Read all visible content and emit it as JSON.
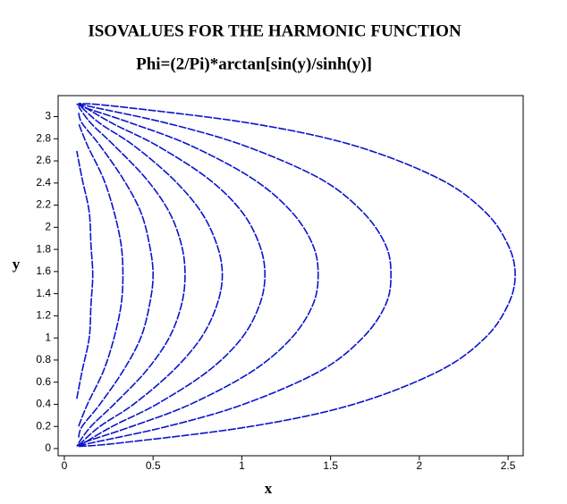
{
  "chart_data": {
    "type": "contour",
    "title": "ISOVALUES FOR THE HARMONIC FUNCTION",
    "subtitle": "Phi=(2/Pi)*arctan[sin(y)/sinh(y)]",
    "xlabel": "x",
    "ylabel": "y",
    "xlim": [
      -0.035,
      2.585
    ],
    "ylim": [
      -0.065,
      3.19
    ],
    "xticks": [
      0,
      0.5,
      1,
      1.5,
      2,
      2.5
    ],
    "yticks": [
      0,
      0.2,
      0.4,
      0.6,
      0.8,
      1,
      1.2,
      1.4,
      1.6,
      1.8,
      2,
      2.2,
      2.4,
      2.6,
      2.8,
      3
    ],
    "color": "#0a14c8",
    "series": [
      {
        "x": [
          0.07,
          0.1,
          0.14,
          0.15,
          0.16,
          0.15,
          0.14,
          0.1,
          0.07
        ],
        "y": [
          0.45,
          0.7,
          1.0,
          1.3,
          1.57,
          1.84,
          2.14,
          2.44,
          2.69
        ]
      },
      {
        "x": [
          0.08,
          0.13,
          0.22,
          0.28,
          0.32,
          0.33,
          0.32,
          0.28,
          0.22,
          0.13,
          0.08
        ],
        "y": [
          0.2,
          0.4,
          0.7,
          1.0,
          1.3,
          1.57,
          1.84,
          2.14,
          2.44,
          2.74,
          2.94
        ]
      },
      {
        "x": [
          0.08,
          0.1,
          0.2,
          0.33,
          0.43,
          0.48,
          0.5,
          0.48,
          0.43,
          0.33,
          0.2,
          0.1,
          0.08
        ],
        "y": [
          0.1,
          0.2,
          0.4,
          0.7,
          1.0,
          1.3,
          1.57,
          1.84,
          2.14,
          2.44,
          2.74,
          2.94,
          3.04
        ]
      },
      {
        "x": [
          0.08,
          0.15,
          0.28,
          0.46,
          0.59,
          0.66,
          0.68,
          0.66,
          0.59,
          0.46,
          0.28,
          0.15,
          0.08
        ],
        "y": [
          0.05,
          0.2,
          0.4,
          0.7,
          1.0,
          1.3,
          1.57,
          1.84,
          2.14,
          2.44,
          2.74,
          2.94,
          3.09
        ]
      },
      {
        "x": [
          0.08,
          0.2,
          0.39,
          0.61,
          0.77,
          0.86,
          0.89,
          0.86,
          0.77,
          0.61,
          0.39,
          0.2,
          0.08
        ],
        "y": [
          0.03,
          0.2,
          0.4,
          0.7,
          1.0,
          1.3,
          1.57,
          1.84,
          2.14,
          2.44,
          2.74,
          2.94,
          3.11
        ]
      },
      {
        "x": [
          0.08,
          0.27,
          0.52,
          0.81,
          1.0,
          1.1,
          1.13,
          1.1,
          1.0,
          0.81,
          0.52,
          0.27,
          0.08
        ],
        "y": [
          0.02,
          0.2,
          0.4,
          0.7,
          1.0,
          1.3,
          1.57,
          1.84,
          2.14,
          2.44,
          2.74,
          2.94,
          3.12
        ]
      },
      {
        "x": [
          0.08,
          0.1,
          0.38,
          0.71,
          1.06,
          1.28,
          1.4,
          1.43,
          1.4,
          1.28,
          1.06,
          0.71,
          0.38,
          0.1,
          0.08
        ],
        "y": [
          0.02,
          0.05,
          0.2,
          0.4,
          0.7,
          1.0,
          1.3,
          1.57,
          1.84,
          2.14,
          2.44,
          2.74,
          2.94,
          3.09,
          3.12
        ]
      },
      {
        "x": [
          0.08,
          0.15,
          0.58,
          1.01,
          1.44,
          1.68,
          1.81,
          1.84,
          1.81,
          1.68,
          1.44,
          1.01,
          0.58,
          0.15,
          0.08
        ],
        "y": [
          0.02,
          0.05,
          0.2,
          0.4,
          0.7,
          1.0,
          1.3,
          1.57,
          1.84,
          2.14,
          2.44,
          2.74,
          2.94,
          3.09,
          3.12
        ]
      },
      {
        "x": [
          0.08,
          0.31,
          1.05,
          1.63,
          2.11,
          2.37,
          2.5,
          2.54,
          2.5,
          2.37,
          2.11,
          1.63,
          1.05,
          0.31,
          0.08
        ],
        "y": [
          0.02,
          0.05,
          0.2,
          0.4,
          0.7,
          1.0,
          1.3,
          1.57,
          1.84,
          2.14,
          2.44,
          2.74,
          2.94,
          3.09,
          3.12
        ]
      }
    ]
  }
}
